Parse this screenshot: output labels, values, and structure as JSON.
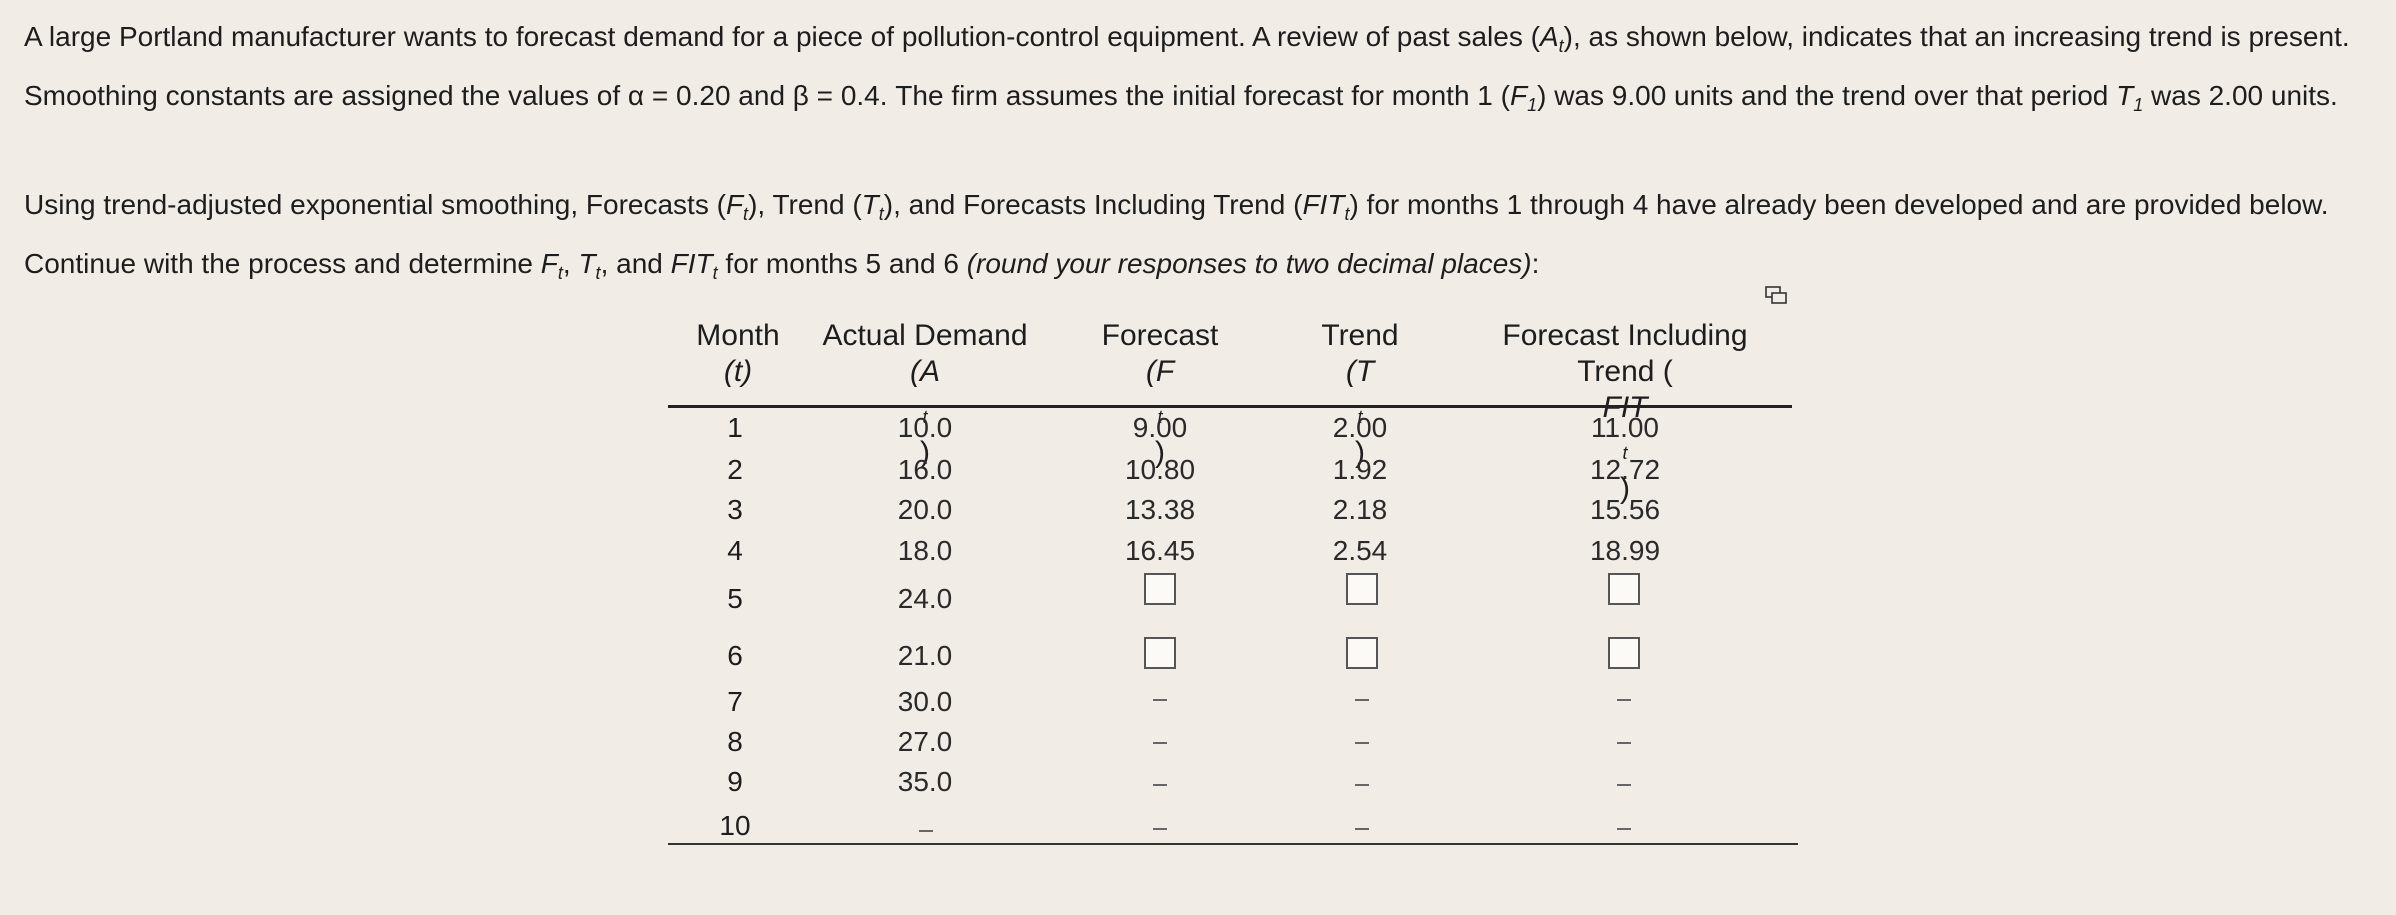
{
  "problem": {
    "p1_a": "A large Portland manufacturer wants to forecast demand for a piece of pollution-control equipment. A review of past sales (",
    "p1_b": "), as shown below, indicates that an increasing trend is present.  Smoothing constants are assigned the values of α = 0.20 and β = 0.4. The firm assumes the initial forecast for month 1 (",
    "p1_c": ") was 9.00 units and the trend over that period ",
    "p1_d": " was 2.00 units.",
    "p2_a": "Using trend-adjusted exponential smoothing, Forecasts (",
    "p2_b": "), Trend (",
    "p2_c": "), and Forecasts Including Trend (",
    "p2_d": ") for months 1 through 4 have already been developed and are provided below.  Continue with the process and determine ",
    "p2_e": ", ",
    "p2_f": ", and ",
    "p2_g": " for months 5 and 6 ",
    "p2_h": "(round your responses to two decimal places)",
    "p2_i": ":"
  },
  "table": {
    "headers": {
      "month": [
        "Month",
        "(t)"
      ],
      "actual": [
        "Actual Demand",
        "(A",
        "t",
        ")"
      ],
      "forecast": [
        "Forecast",
        "(F",
        "t",
        ")"
      ],
      "trend": [
        "Trend",
        "(T",
        "t",
        ")"
      ],
      "fit": [
        "Forecast Including",
        "Trend (",
        "FIT",
        "t",
        ")"
      ]
    },
    "rows": [
      {
        "month": "1",
        "actual": "10.0",
        "forecast": "9.00",
        "trend": "2.00",
        "fit": "11.00"
      },
      {
        "month": "2",
        "actual": "16.0",
        "forecast": "10.80",
        "trend": "1.92",
        "fit": "12.72"
      },
      {
        "month": "3",
        "actual": "20.0",
        "forecast": "13.38",
        "trend": "2.18",
        "fit": "15.56"
      },
      {
        "month": "4",
        "actual": "18.0",
        "forecast": "16.45",
        "trend": "2.54",
        "fit": "18.99"
      },
      {
        "month": "5",
        "actual": "24.0"
      },
      {
        "month": "6",
        "actual": "21.0"
      },
      {
        "month": "7",
        "actual": "30.0"
      },
      {
        "month": "8",
        "actual": "27.0"
      },
      {
        "month": "9",
        "actual": "35.0"
      },
      {
        "month": "10"
      }
    ]
  }
}
